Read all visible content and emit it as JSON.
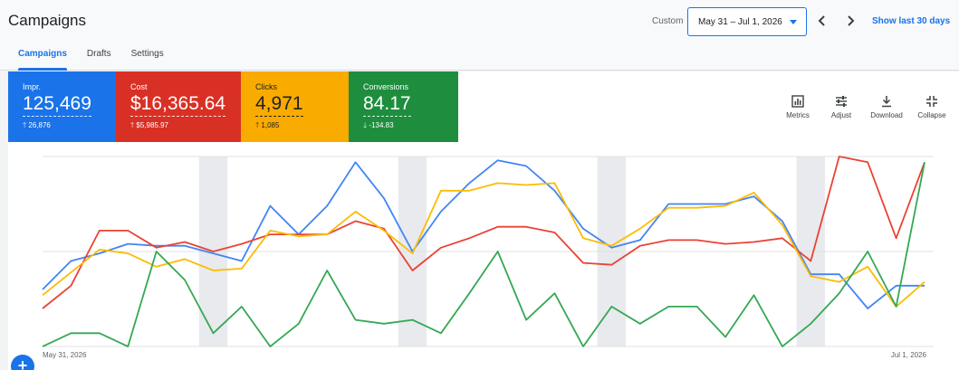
{
  "header": {
    "title": "Campaigns",
    "date_label": "Custom",
    "date_range": "May 31 – Jul 1, 2026",
    "prev_icon": "chevron-left-icon",
    "next_icon": "chevron-right-icon",
    "show_last": "Show last 30 days",
    "tabs": [
      {
        "label": "Campaigns",
        "active": true
      },
      {
        "label": "Drafts",
        "active": false
      },
      {
        "label": "Settings",
        "active": false
      }
    ]
  },
  "metrics": [
    {
      "label": "Impr.",
      "value": "125,469",
      "delta": "26,876",
      "direction": "up",
      "color": "#1a73e8"
    },
    {
      "label": "Cost",
      "value": "$16,365.64",
      "delta": "$5,985.97",
      "direction": "up",
      "color": "#d93025"
    },
    {
      "label": "Clicks",
      "value": "4,971",
      "delta": "1,085",
      "direction": "up",
      "color": "#f9ab00"
    },
    {
      "label": "Conversions",
      "value": "84.17",
      "delta": "-134.83",
      "direction": "down",
      "color": "#1e8e3e"
    }
  ],
  "toolbar": [
    {
      "label": "Metrics",
      "icon": "metrics-icon"
    },
    {
      "label": "Adjust",
      "icon": "adjust-icon"
    },
    {
      "label": "Download",
      "icon": "download-icon"
    },
    {
      "label": "Collapse",
      "icon": "collapse-icon"
    }
  ],
  "fab_icon": "plus-icon",
  "chart_data": {
    "type": "line",
    "x_start_label": "May 31, 2026",
    "x_end_label": "Jul 1, 2026",
    "x": [
      "May 31",
      "Jun 1",
      "Jun 2",
      "Jun 3",
      "Jun 4",
      "Jun 5",
      "Jun 6",
      "Jun 7",
      "Jun 8",
      "Jun 9",
      "Jun 10",
      "Jun 11",
      "Jun 12",
      "Jun 13",
      "Jun 14",
      "Jun 15",
      "Jun 16",
      "Jun 17",
      "Jun 18",
      "Jun 19",
      "Jun 20",
      "Jun 21",
      "Jun 22",
      "Jun 23",
      "Jun 24",
      "Jun 25",
      "Jun 26",
      "Jun 27",
      "Jun 28",
      "Jun 29",
      "Jun 30",
      "Jul 1"
    ],
    "ylim": [
      0,
      100
    ],
    "shaded_columns": [
      6,
      13,
      20,
      27
    ],
    "grid": "horizontal",
    "series": [
      {
        "name": "Impr.",
        "color": "#4285f4",
        "values": [
          30,
          45,
          49,
          54,
          53,
          53,
          49,
          45,
          74,
          59,
          74,
          97,
          78,
          50,
          71,
          86,
          98,
          95,
          82,
          62,
          52,
          56,
          75,
          75,
          75,
          79,
          66,
          38,
          38,
          20,
          32,
          32
        ]
      },
      {
        "name": "Cost",
        "color": "#ea4335",
        "values": [
          20,
          32,
          61,
          61,
          52,
          55,
          50,
          54,
          59,
          59,
          59,
          66,
          62,
          40,
          52,
          57,
          63,
          63,
          60,
          44,
          43,
          53,
          56,
          56,
          54,
          55,
          57,
          45,
          100,
          97,
          57,
          97
        ]
      },
      {
        "name": "Clicks",
        "color": "#fbbc04",
        "values": [
          27,
          39,
          51,
          49,
          42,
          46,
          40,
          41,
          61,
          58,
          59,
          71,
          61,
          49,
          82,
          82,
          86,
          85,
          86,
          57,
          53,
          62,
          73,
          73,
          74,
          81,
          64,
          37,
          34,
          42,
          21,
          34
        ]
      },
      {
        "name": "Conversions",
        "color": "#34a853",
        "values": [
          0,
          7,
          7,
          0,
          50,
          35,
          7,
          21,
          0,
          12,
          40,
          14,
          12,
          14,
          7,
          28,
          50,
          14,
          28,
          0,
          21,
          12,
          21,
          21,
          5,
          27,
          0,
          12,
          28,
          50,
          21,
          97
        ]
      }
    ]
  }
}
